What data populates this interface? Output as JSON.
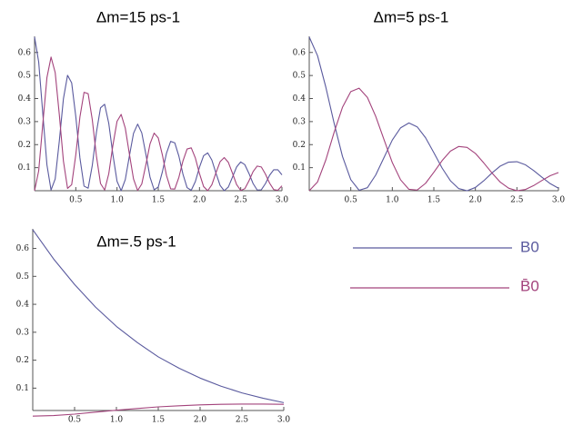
{
  "chart_data": [
    {
      "type": "line",
      "title": "Δm=15 ps-1",
      "x": [
        0,
        0.05,
        0.1,
        0.15,
        0.2,
        0.25,
        0.3,
        0.35,
        0.4,
        0.45,
        0.5,
        0.55,
        0.6,
        0.65,
        0.7,
        0.75,
        0.8,
        0.85,
        0.9,
        0.95,
        1,
        1.05,
        1.1,
        1.15,
        1.2,
        1.25,
        1.3,
        1.35,
        1.4,
        1.45,
        1.5,
        1.55,
        1.6,
        1.65,
        1.7,
        1.75,
        1.8,
        1.85,
        1.9,
        1.95,
        2,
        2.05,
        2.1,
        2.15,
        2.2,
        2.25,
        2.3,
        2.35,
        2.4,
        2.45,
        2.5,
        2.55,
        2.6,
        2.65,
        2.7,
        2.75,
        2.8,
        2.85,
        2.9,
        2.95,
        3
      ],
      "series": [
        {
          "name": "B0",
          "color": "#5a5a9e",
          "values": [
            0.667,
            0.559,
            0.334,
            0.112,
            0.003,
            0.051,
            0.215,
            0.399,
            0.501,
            0.468,
            0.322,
            0.142,
            0.02,
            0.011,
            0.11,
            0.253,
            0.36,
            0.375,
            0.292,
            0.157,
            0.041,
            0,
            0.048,
            0.151,
            0.249,
            0.289,
            0.251,
            0.158,
            0.059,
            0.004,
            0.016,
            0.082,
            0.163,
            0.214,
            0.208,
            0.15,
            0.071,
            0.013,
            0.002,
            0.04,
            0.102,
            0.152,
            0.164,
            0.133,
            0.076,
            0.023,
            0,
            0.016,
            0.059,
            0.103,
            0.125,
            0.113,
            0.075,
            0.031,
            0.003,
            0.004,
            0.031,
            0.067,
            0.091,
            0.091,
            0.069
          ]
        },
        {
          "name": "B̄0",
          "color": "#a3437c",
          "values": [
            0,
            0.086,
            0.29,
            0.491,
            0.58,
            0.513,
            0.331,
            0.129,
            0.01,
            0.026,
            0.156,
            0.32,
            0.427,
            0.421,
            0.308,
            0.151,
            0.031,
            0.003,
            0.074,
            0.197,
            0.301,
            0.331,
            0.272,
            0.159,
            0.051,
            0.001,
            0.029,
            0.113,
            0.203,
            0.25,
            0.229,
            0.155,
            0.066,
            0.008,
            0.007,
            0.058,
            0.13,
            0.181,
            0.186,
            0.142,
            0.074,
            0.018,
            0,
            0.026,
            0.078,
            0.126,
            0.144,
            0.123,
            0.076,
            0.027,
            0.001,
            0.009,
            0.043,
            0.083,
            0.107,
            0.103,
            0.072,
            0.033,
            0.005,
            0.002,
            0.021
          ]
        }
      ],
      "xlim": [
        0,
        3
      ],
      "ylim": [
        0,
        0.67
      ],
      "xticks": [
        0.5,
        {
          "value": 1,
          "label": "1.0"
        },
        1.5,
        {
          "value": 2,
          "label": "2.0"
        },
        2.5,
        {
          "value": 3,
          "label": "3.0"
        }
      ],
      "yticks": [
        0.1,
        0.2,
        0.3,
        0.4,
        0.5,
        0.6
      ]
    },
    {
      "type": "line",
      "title": "Δm=5 ps-1",
      "x": [
        0,
        0.1,
        0.2,
        0.3,
        0.4,
        0.5,
        0.6,
        0.7,
        0.8,
        0.9,
        1,
        1.1,
        1.2,
        1.3,
        1.4,
        1.5,
        1.6,
        1.7,
        1.8,
        1.9,
        2,
        2.1,
        2.2,
        2.3,
        2.4,
        2.5,
        2.6,
        2.7,
        2.8,
        2.9,
        3
      ],
      "series": [
        {
          "color": "#5a5a9e",
          "values": [
            0.667,
            0.586,
            0.449,
            0.292,
            0.149,
            0.048,
            0.002,
            0.013,
            0.068,
            0.144,
            0.22,
            0.273,
            0.294,
            0.277,
            0.23,
            0.165,
            0.098,
            0.043,
            0.009,
            0,
            0.014,
            0.043,
            0.077,
            0.107,
            0.124,
            0.126,
            0.113,
            0.088,
            0.059,
            0.031,
            0.011
          ]
        },
        {
          "color": "#a3437c",
          "values": [
            0,
            0.038,
            0.134,
            0.254,
            0.362,
            0.43,
            0.445,
            0.405,
            0.323,
            0.222,
            0.122,
            0.047,
            0.006,
            0.003,
            0.032,
            0.08,
            0.131,
            0.172,
            0.192,
            0.188,
            0.162,
            0.121,
            0.077,
            0.037,
            0.011,
            0,
            0.005,
            0.022,
            0.044,
            0.065,
            0.079
          ]
        }
      ],
      "xlim": [
        0,
        3
      ],
      "ylim": [
        0,
        0.67
      ],
      "xticks": [
        0.5,
        {
          "value": 1,
          "label": "1.0"
        },
        1.5,
        {
          "value": 2,
          "label": "2.0"
        },
        2.5,
        {
          "value": 3,
          "label": "3.0"
        }
      ],
      "yticks": [
        0.1,
        0.2,
        0.3,
        0.4,
        0.5,
        0.6
      ]
    },
    {
      "type": "line",
      "title": "Δm=.5 ps-1",
      "x": [
        0,
        0.25,
        0.5,
        0.75,
        1,
        1.25,
        1.5,
        1.75,
        2,
        2.25,
        2.5,
        2.75,
        3
      ],
      "series": [
        {
          "color": "#5a5a9e",
          "values": [
            0.667,
            0.562,
            0.471,
            0.39,
            0.321,
            0.263,
            0.212,
            0.171,
            0.136,
            0.107,
            0.083,
            0.064,
            0.048
          ]
        },
        {
          "color": "#a3437c",
          "values": [
            0,
            0.002,
            0.007,
            0.014,
            0.021,
            0.027,
            0.033,
            0.037,
            0.04,
            0.042,
            0.043,
            0.043,
            0.042
          ]
        }
      ],
      "xlim": [
        0,
        3
      ],
      "ylim": [
        0.02,
        0.67
      ],
      "xticks": [
        0.5,
        {
          "value": 1,
          "label": "1.0"
        },
        1.5,
        {
          "value": 2,
          "label": "2.0"
        },
        2.5,
        {
          "value": 3,
          "label": "3.0"
        }
      ],
      "yticks": [
        0.1,
        0.2,
        0.3,
        0.4,
        0.5,
        0.6
      ]
    }
  ]
}
